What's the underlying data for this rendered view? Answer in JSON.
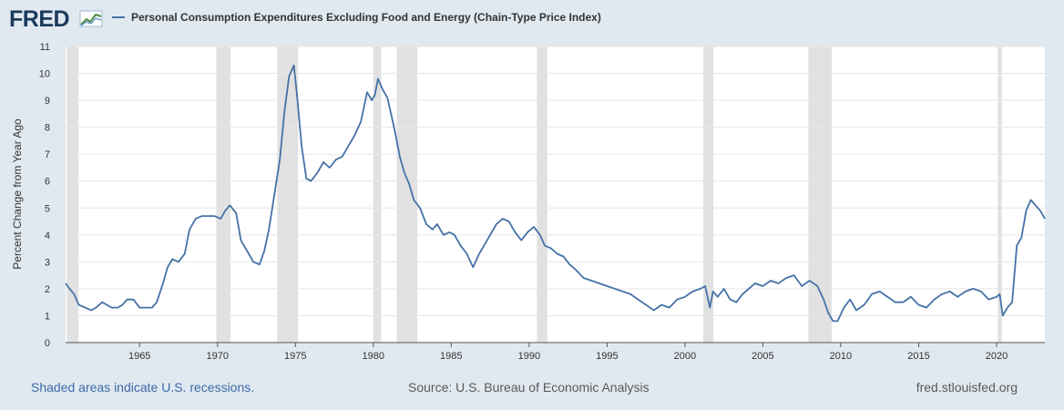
{
  "header": {
    "logo_text": "FRED",
    "logo_icon": "fred-chart-icon"
  },
  "footer": {
    "recessions_note": "Shaded areas indicate U.S. recessions.",
    "source": "Source: U.S. Bureau of Economic Analysis",
    "site": "fred.stlouisfed.org"
  },
  "colors": {
    "background": "#e1e9f0",
    "plot_background": "#ffffff",
    "series_line": "#4572a7",
    "recession_shade": "#e1e1e1",
    "gridline": "#e6e6e6",
    "logo": "#1a3a5a"
  },
  "chart_data": {
    "type": "line",
    "title": "Personal Consumption Expenditures Excluding Food and Energy (Chain-Type Price Index)",
    "ylabel": "Percent Change from Year Ago",
    "xlabel": "",
    "xlim": [
      1960.25,
      2023.1
    ],
    "ylim": [
      0,
      11
    ],
    "grid": true,
    "legend": "top-left",
    "x_ticks": [
      1965,
      1970,
      1975,
      1980,
      1985,
      1990,
      1995,
      2000,
      2005,
      2010,
      2015,
      2020
    ],
    "y_ticks": [
      0,
      1,
      2,
      3,
      4,
      5,
      6,
      7,
      8,
      9,
      10,
      11
    ],
    "recessions": [
      [
        1960.33,
        1961.08
      ],
      [
        1969.92,
        1970.83
      ],
      [
        1973.83,
        1975.17
      ],
      [
        1980.0,
        1980.5
      ],
      [
        1981.5,
        1982.83
      ],
      [
        1990.5,
        1991.17
      ],
      [
        2001.17,
        2001.83
      ],
      [
        2007.92,
        2009.42
      ],
      [
        2020.08,
        2020.33
      ]
    ],
    "series": [
      {
        "name": "Personal Consumption Expenditures Excluding Food and Energy (Chain-Type Price Index)",
        "x": [
          1960.25,
          1960.5,
          1960.8,
          1961.1,
          1961.5,
          1961.9,
          1962.2,
          1962.6,
          1962.9,
          1963.2,
          1963.6,
          1963.9,
          1964.2,
          1964.6,
          1965.0,
          1965.4,
          1965.8,
          1966.1,
          1966.5,
          1966.8,
          1967.1,
          1967.5,
          1967.9,
          1968.2,
          1968.6,
          1969.0,
          1969.4,
          1969.8,
          1970.2,
          1970.5,
          1970.8,
          1971.2,
          1971.5,
          1971.9,
          1972.3,
          1972.7,
          1973.0,
          1973.3,
          1973.6,
          1974.0,
          1974.3,
          1974.6,
          1974.9,
          1975.1,
          1975.4,
          1975.7,
          1976.0,
          1976.4,
          1976.8,
          1977.2,
          1977.6,
          1978.0,
          1978.4,
          1978.8,
          1979.2,
          1979.6,
          1979.9,
          1980.1,
          1980.3,
          1980.6,
          1980.9,
          1981.1,
          1981.4,
          1981.7,
          1982.0,
          1982.3,
          1982.6,
          1983.0,
          1983.4,
          1983.8,
          1984.1,
          1984.5,
          1984.9,
          1985.2,
          1985.6,
          1986.0,
          1986.4,
          1986.8,
          1987.2,
          1987.5,
          1987.9,
          1988.3,
          1988.7,
          1989.1,
          1989.5,
          1989.9,
          1990.3,
          1990.7,
          1991.0,
          1991.4,
          1991.8,
          1992.2,
          1992.6,
          1993.0,
          1993.5,
          1994.0,
          1994.5,
          1995.0,
          1995.5,
          1996.0,
          1996.5,
          1997.0,
          1997.5,
          1998.0,
          1998.5,
          1999.0,
          1999.5,
          2000.0,
          2000.5,
          2001.0,
          2001.3,
          2001.6,
          2001.8,
          2002.1,
          2002.5,
          2002.9,
          2003.3,
          2003.7,
          2004.1,
          2004.5,
          2005.0,
          2005.5,
          2006.0,
          2006.5,
          2007.0,
          2007.5,
          2008.0,
          2008.5,
          2008.9,
          2009.2,
          2009.5,
          2009.8,
          2010.2,
          2010.6,
          2011.0,
          2011.5,
          2012.0,
          2012.5,
          2013.0,
          2013.5,
          2014.0,
          2014.5,
          2015.0,
          2015.5,
          2016.0,
          2016.5,
          2017.0,
          2017.5,
          2018.0,
          2018.5,
          2019.0,
          2019.5,
          2020.0,
          2020.2,
          2020.4,
          2020.7,
          2021.0,
          2021.3,
          2021.6,
          2021.9,
          2022.2,
          2022.5,
          2022.8,
          2023.1
        ],
        "values": [
          2.2,
          2.0,
          1.8,
          1.4,
          1.3,
          1.2,
          1.3,
          1.5,
          1.4,
          1.3,
          1.3,
          1.4,
          1.6,
          1.6,
          1.3,
          1.3,
          1.3,
          1.5,
          2.2,
          2.8,
          3.1,
          3.0,
          3.3,
          4.2,
          4.6,
          4.7,
          4.7,
          4.7,
          4.6,
          4.9,
          5.1,
          4.8,
          3.8,
          3.4,
          3.0,
          2.9,
          3.4,
          4.2,
          5.3,
          6.8,
          8.6,
          9.9,
          10.3,
          9.2,
          7.3,
          6.1,
          6.0,
          6.3,
          6.7,
          6.5,
          6.8,
          6.9,
          7.3,
          7.7,
          8.2,
          9.3,
          9.0,
          9.2,
          9.8,
          9.4,
          9.1,
          8.6,
          7.8,
          6.9,
          6.3,
          5.9,
          5.3,
          5.0,
          4.4,
          4.2,
          4.4,
          4.0,
          4.1,
          4.0,
          3.6,
          3.3,
          2.8,
          3.3,
          3.7,
          4.0,
          4.4,
          4.6,
          4.5,
          4.1,
          3.8,
          4.1,
          4.3,
          4.0,
          3.6,
          3.5,
          3.3,
          3.2,
          2.9,
          2.7,
          2.4,
          2.3,
          2.2,
          2.1,
          2.0,
          1.9,
          1.8,
          1.6,
          1.4,
          1.2,
          1.4,
          1.3,
          1.6,
          1.7,
          1.9,
          2.0,
          2.1,
          1.3,
          1.9,
          1.7,
          2.0,
          1.6,
          1.5,
          1.8,
          2.0,
          2.2,
          2.1,
          2.3,
          2.2,
          2.4,
          2.5,
          2.1,
          2.3,
          2.1,
          1.6,
          1.1,
          0.8,
          0.8,
          1.3,
          1.6,
          1.2,
          1.4,
          1.8,
          1.9,
          1.7,
          1.5,
          1.5,
          1.7,
          1.4,
          1.3,
          1.6,
          1.8,
          1.9,
          1.7,
          1.9,
          2.0,
          1.9,
          1.6,
          1.7,
          1.8,
          1.0,
          1.3,
          1.5,
          3.6,
          3.9,
          4.9,
          5.3,
          5.1,
          4.9,
          4.6
        ]
      }
    ]
  }
}
